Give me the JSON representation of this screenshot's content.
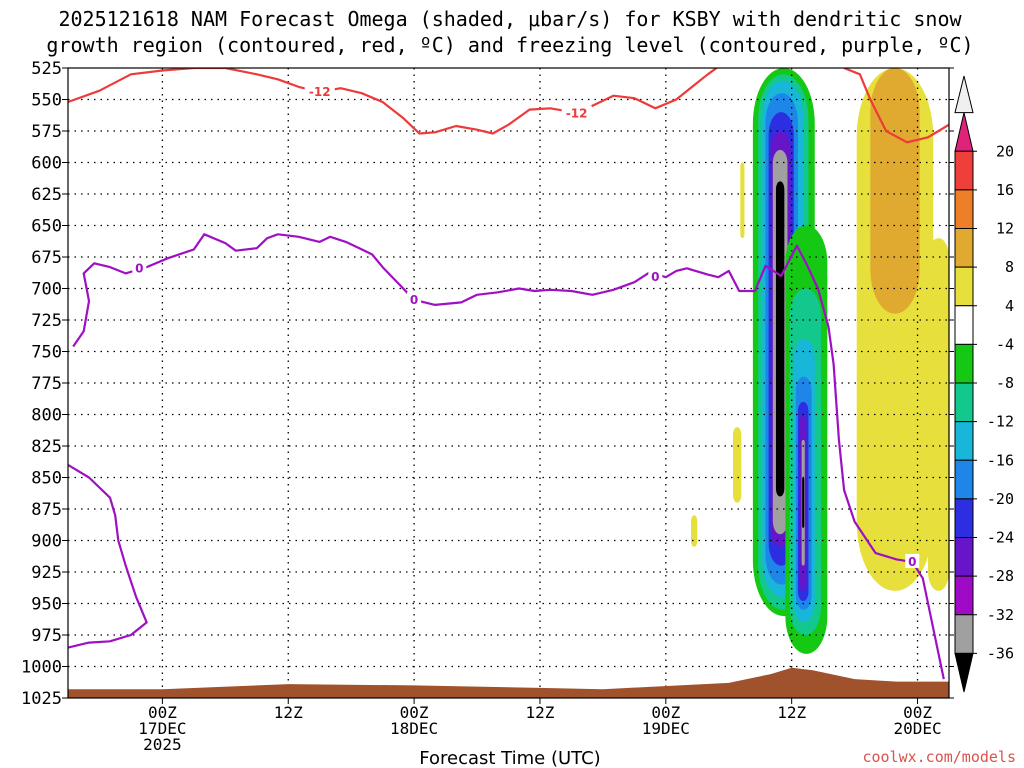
{
  "chart_data": {
    "type": "time-height",
    "title_line1": "2025121618 NAM Forecast Omega (shaded, μbar/s) for KSBY with dendritic snow",
    "title_line2": "growth region (contoured, red, ºC) and freezing level (contoured, purple, ºC)",
    "xlabel": "Forecast Time (UTC)",
    "credit": "coolwx.com/models",
    "x_range_hours": [
      -9,
      75
    ],
    "x_ticks": [
      {
        "hour": 0,
        "lines": [
          "00Z",
          "17DEC",
          "2025"
        ]
      },
      {
        "hour": 12,
        "lines": [
          "12Z"
        ]
      },
      {
        "hour": 24,
        "lines": [
          "00Z",
          "18DEC"
        ]
      },
      {
        "hour": 36,
        "lines": [
          "12Z"
        ]
      },
      {
        "hour": 48,
        "lines": [
          "00Z",
          "19DEC"
        ]
      },
      {
        "hour": 60,
        "lines": [
          "12Z"
        ]
      },
      {
        "hour": 72,
        "lines": [
          "00Z",
          "20DEC"
        ]
      }
    ],
    "y_range_hpa": [
      525,
      1025
    ],
    "y_ticks": [
      "525",
      "550",
      "575",
      "600",
      "625",
      "650",
      "675",
      "700",
      "725",
      "750",
      "775",
      "800",
      "825",
      "850",
      "875",
      "900",
      "925",
      "950",
      "975",
      "1000",
      "1025"
    ],
    "colorbar": {
      "labels": [
        "20",
        "16",
        "12",
        "8",
        "4",
        "-4",
        "-8",
        "-12",
        "-16",
        "-20",
        "-24",
        "-28",
        "-32",
        "-36"
      ],
      "colors": [
        "#f0f0f0",
        "#e1227a",
        "#ee3f3a",
        "#ee7f27",
        "#e0a930",
        "#e7df3c",
        "#ffffff",
        "#14c814",
        "#12c88c",
        "#18b6d8",
        "#1e86e8",
        "#2d2ee2",
        "#6616c8",
        "#9e0ac6",
        "#a0a0a0",
        "#000000"
      ]
    },
    "omega_regions": [
      {
        "value": -8,
        "color": "#14c814",
        "t0": 56.3,
        "t1": 62.2,
        "p0": 525,
        "p1": 960
      },
      {
        "value": -12,
        "color": "#12c88c",
        "t0": 56.8,
        "t1": 61.6,
        "p0": 530,
        "p1": 955
      },
      {
        "value": -16,
        "color": "#18b6d8",
        "t0": 57.2,
        "t1": 61.1,
        "p0": 535,
        "p1": 945
      },
      {
        "value": -20,
        "color": "#1e86e8",
        "t0": 57.5,
        "t1": 60.6,
        "p0": 545,
        "p1": 935
      },
      {
        "value": -24,
        "color": "#2d2ee2",
        "t0": 57.8,
        "t1": 60.2,
        "p0": 560,
        "p1": 920
      },
      {
        "value": -28,
        "color": "#6616c8",
        "t0": 58.0,
        "t1": 59.9,
        "p0": 575,
        "p1": 905
      },
      {
        "value": -32,
        "color": "#a0a0a0",
        "t0": 58.2,
        "t1": 59.6,
        "p0": 590,
        "p1": 895
      },
      {
        "value": -36,
        "color": "#000000",
        "t0": 58.5,
        "t1": 59.3,
        "p0": 615,
        "p1": 865
      },
      {
        "value": -8,
        "color": "#14c814",
        "t0": 59.4,
        "t1": 63.4,
        "p0": 650,
        "p1": 990
      },
      {
        "value": -12,
        "color": "#12c88c",
        "t0": 59.8,
        "t1": 62.8,
        "p0": 700,
        "p1": 975
      },
      {
        "value": -16,
        "color": "#18b6d8",
        "t0": 60.2,
        "t1": 62.2,
        "p0": 740,
        "p1": 965
      },
      {
        "value": -20,
        "color": "#1e86e8",
        "t0": 60.4,
        "t1": 61.9,
        "p0": 770,
        "p1": 955
      },
      {
        "value": -24,
        "color": "#2d2ee2",
        "t0": 60.6,
        "t1": 61.6,
        "p0": 790,
        "p1": 948
      },
      {
        "value": -28,
        "color": "#6616c8",
        "t0": 60.8,
        "t1": 61.4,
        "p0": 800,
        "p1": 940
      },
      {
        "value": -32,
        "color": "#a0a0a0",
        "t0": 60.95,
        "t1": 61.25,
        "p0": 820,
        "p1": 920
      },
      {
        "value": -36,
        "color": "#000000",
        "t0": 61.0,
        "t1": 61.2,
        "p0": 850,
        "p1": 890
      },
      {
        "value": 4,
        "color": "#e7df3c",
        "t0": 66.2,
        "t1": 73.5,
        "p0": 525,
        "p1": 940
      },
      {
        "value": 8,
        "color": "#e0a930",
        "t0": 67.5,
        "t1": 72.2,
        "p0": 525,
        "p1": 720
      },
      {
        "value": 4,
        "color": "#e7df3c",
        "t0": 73.0,
        "t1": 75.0,
        "p0": 660,
        "p1": 940
      },
      {
        "value": 4,
        "color": "#e7df3c",
        "t0": 54.4,
        "t1": 55.2,
        "p0": 810,
        "p1": 870
      },
      {
        "value": 4,
        "color": "#e7df3c",
        "t0": 50.4,
        "t1": 51.0,
        "p0": 880,
        "p1": 905
      },
      {
        "value": 4,
        "color": "#e7df3c",
        "t0": 55.1,
        "t1": 55.5,
        "p0": 600,
        "p1": 660
      }
    ],
    "dgz_contour": {
      "value_label": "-12",
      "color": "#ee3a3a",
      "labels_at": [
        [
          15.0,
          544
        ],
        [
          39.5,
          561
        ]
      ],
      "points": [
        [
          -9,
          552
        ],
        [
          -6,
          543
        ],
        [
          -3,
          530
        ],
        [
          0,
          527
        ],
        [
          3,
          525
        ],
        [
          6,
          525
        ],
        [
          9,
          530
        ],
        [
          11,
          534
        ],
        [
          13,
          540
        ],
        [
          15,
          544
        ],
        [
          17,
          541
        ],
        [
          19,
          545
        ],
        [
          21,
          552
        ],
        [
          23,
          565
        ],
        [
          24.5,
          577
        ],
        [
          26,
          576
        ],
        [
          28,
          571
        ],
        [
          30,
          574
        ],
        [
          31.5,
          577
        ],
        [
          33,
          570
        ],
        [
          35,
          558
        ],
        [
          37,
          557
        ],
        [
          39,
          560
        ],
        [
          41,
          555
        ],
        [
          43,
          547
        ],
        [
          45,
          549
        ],
        [
          47,
          557
        ],
        [
          49,
          550
        ],
        [
          50.5,
          540
        ],
        [
          52,
          530
        ],
        [
          53,
          524
        ]
      ]
    },
    "dgz_contour_right": {
      "points": [
        [
          65,
          525
        ],
        [
          66.5,
          530
        ],
        [
          67.5,
          550
        ],
        [
          69,
          575
        ],
        [
          71,
          584
        ],
        [
          73,
          580
        ],
        [
          74,
          575
        ],
        [
          75,
          570
        ]
      ]
    },
    "freezing_contour": {
      "value_label": "0",
      "color": "#9f10c4",
      "labels_at": [
        [
          -2.2,
          684
        ],
        [
          24.0,
          709
        ],
        [
          47.0,
          691
        ],
        [
          71.5,
          917
        ]
      ],
      "points": [
        [
          -8.5,
          746
        ],
        [
          -7.5,
          734
        ],
        [
          -7.0,
          710
        ],
        [
          -7.5,
          688
        ],
        [
          -6.5,
          680
        ],
        [
          -5.0,
          683
        ],
        [
          -3.5,
          688
        ],
        [
          -1.5,
          683
        ],
        [
          0.5,
          676
        ],
        [
          3.0,
          669
        ],
        [
          4.0,
          657
        ],
        [
          6.0,
          664
        ],
        [
          7.0,
          670
        ],
        [
          9.0,
          668
        ],
        [
          10.0,
          660
        ],
        [
          11.0,
          657
        ],
        [
          13.0,
          659
        ],
        [
          15.0,
          663
        ],
        [
          16.0,
          659
        ],
        [
          17.5,
          663
        ],
        [
          19.0,
          669
        ],
        [
          20.0,
          673
        ],
        [
          21.0,
          683
        ],
        [
          22.5,
          696
        ],
        [
          24.0,
          709
        ],
        [
          26.0,
          713
        ],
        [
          28.5,
          711
        ],
        [
          30.0,
          705
        ],
        [
          32.0,
          703
        ],
        [
          34.0,
          700
        ],
        [
          35.5,
          702
        ],
        [
          37.0,
          701
        ],
        [
          39.0,
          702
        ],
        [
          41.0,
          705
        ],
        [
          43.0,
          701
        ],
        [
          45.0,
          695
        ],
        [
          46.5,
          687
        ],
        [
          48.0,
          691
        ],
        [
          49.0,
          686
        ],
        [
          50.0,
          684
        ],
        [
          52.0,
          689
        ],
        [
          53.0,
          691
        ],
        [
          54.0,
          686
        ],
        [
          55.0,
          702
        ],
        [
          56.5,
          702
        ],
        [
          57.5,
          682
        ],
        [
          59.0,
          690
        ],
        [
          60.5,
          666
        ],
        [
          61.5,
          682
        ],
        [
          62.5,
          700
        ],
        [
          63.5,
          730
        ],
        [
          64.0,
          760
        ],
        [
          64.5,
          820
        ],
        [
          65.0,
          860
        ],
        [
          66.0,
          885
        ],
        [
          68.0,
          910
        ],
        [
          70.0,
          915
        ],
        [
          71.5,
          917
        ],
        [
          72.5,
          930
        ],
        [
          73.5,
          970
        ],
        [
          74.5,
          1010
        ]
      ],
      "points_left_lower": [
        [
          -9,
          840
        ],
        [
          -7.0,
          850
        ],
        [
          -5.0,
          866
        ],
        [
          -4.5,
          880
        ],
        [
          -4.2,
          900
        ],
        [
          -3.5,
          920
        ],
        [
          -2.5,
          945
        ],
        [
          -1.5,
          965
        ],
        [
          -3.0,
          975
        ],
        [
          -5.0,
          980
        ],
        [
          -7.0,
          981
        ],
        [
          -9,
          985
        ]
      ]
    },
    "terrain": {
      "color": "#a0522d",
      "points": [
        [
          -9,
          1018
        ],
        [
          0,
          1018
        ],
        [
          12,
          1014
        ],
        [
          24,
          1015
        ],
        [
          36,
          1017
        ],
        [
          42,
          1018
        ],
        [
          54,
          1013
        ],
        [
          58,
          1006
        ],
        [
          60,
          1001
        ],
        [
          62,
          1003
        ],
        [
          66,
          1010
        ],
        [
          70,
          1012
        ],
        [
          75,
          1012
        ]
      ]
    }
  }
}
